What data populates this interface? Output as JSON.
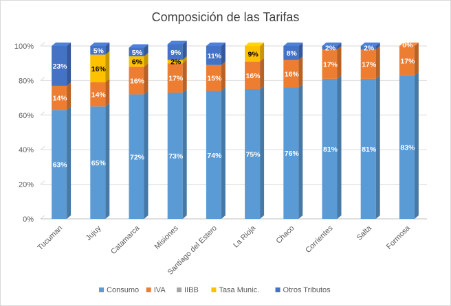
{
  "chart_data": {
    "type": "bar",
    "stacked": true,
    "title": "Composición de las Tarifas",
    "ylim": [
      0,
      100
    ],
    "yticks": [
      "0%",
      "20%",
      "40%",
      "60%",
      "80%",
      "100%"
    ],
    "ytick_values": [
      0,
      20,
      40,
      60,
      80,
      100
    ],
    "categories": [
      "Tucuman",
      "Jujuy",
      "Catamarca",
      "Misiones",
      "Santiago del Estero",
      "La Rioja",
      "Chaco",
      "Corrientes",
      "Salta",
      "Formosa"
    ],
    "series": [
      {
        "name": "Consumo",
        "color": "#5b9bd5",
        "label_color": "#ffffff",
        "values": [
          63,
          65,
          72,
          73,
          74,
          75,
          76,
          81,
          81,
          83
        ],
        "labels": [
          "63%",
          "65%",
          "72%",
          "73%",
          "74%",
          "75%",
          "76%",
          "81%",
          "81%",
          "83%"
        ]
      },
      {
        "name": "IVA",
        "color": "#ed7d31",
        "label_color": "#ffffff",
        "values": [
          14,
          14,
          16,
          17,
          15,
          16,
          16,
          17,
          17,
          17
        ],
        "labels": [
          "14%",
          "14%",
          "16%",
          "17%",
          "15%",
          "16%",
          "16%",
          "17%",
          "17%",
          "17%"
        ]
      },
      {
        "name": "IIBB",
        "color": "#a5a5a5",
        "label_color": "#ffffff",
        "values": [
          0,
          0,
          0,
          0,
          0,
          0,
          0,
          0,
          0,
          0
        ],
        "labels": [
          "",
          "",
          "",
          "",
          "",
          "",
          "",
          "",
          "",
          ""
        ]
      },
      {
        "name": "Tasa Munic.",
        "color": "#ffc000",
        "label_color": "#000000",
        "values": [
          0,
          16,
          6,
          2,
          0,
          9,
          0,
          0,
          0,
          0
        ],
        "labels": [
          "",
          "16%",
          "6%",
          "2%",
          "",
          "9%",
          "",
          "",
          "",
          ""
        ]
      },
      {
        "name": "Otros Tributos",
        "color": "#4472c4",
        "label_color": "#ffffff",
        "values": [
          23,
          5,
          5,
          9,
          11,
          0,
          8,
          2,
          2,
          0
        ],
        "labels": [
          "23%",
          "5%",
          "5%",
          "9%",
          "11%",
          "",
          "8%",
          "2%",
          "2%",
          "0%"
        ]
      }
    ]
  }
}
